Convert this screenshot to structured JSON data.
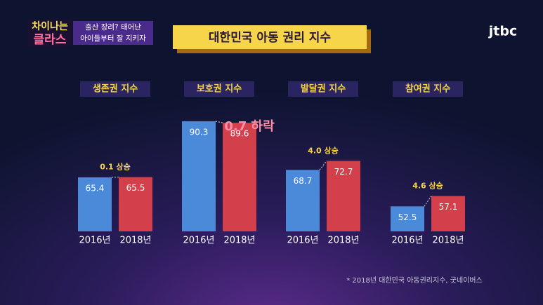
{
  "logo": [
    "차이나는",
    "클라스"
  ],
  "episode": [
    "출산 장려? 태어난",
    "아이들부터 잘 지키자"
  ],
  "title": "대한민국 아동 권리 지수",
  "channel": "jtbc",
  "source": "* 2018년 대한민국 아동권리지수, 굿네이버스",
  "chart_data": [
    {
      "type": "bar",
      "title": "생존권 지수",
      "categories": [
        "2016년",
        "2018년"
      ],
      "values": [
        65.4,
        65.5
      ],
      "colors": [
        "#4a8ad8",
        "#d3404c"
      ],
      "ylim": [
        41.4,
        91.2
      ],
      "annotation": "0.1 상승"
    },
    {
      "type": "bar",
      "title": "보호권 지수",
      "categories": [
        "2016년",
        "2018년"
      ],
      "values": [
        90.3,
        89.6
      ],
      "colors": [
        "#4a8ad8",
        "#d3404c"
      ],
      "ylim": [
        41.4,
        91.2
      ],
      "annotation": "0.7 하락"
    },
    {
      "type": "bar",
      "title": "발달권 지수",
      "categories": [
        "2016년",
        "2018년"
      ],
      "values": [
        68.7,
        72.7
      ],
      "colors": [
        "#4a8ad8",
        "#d3404c"
      ],
      "ylim": [
        41.4,
        91.2
      ],
      "annotation": "4.0 상승"
    },
    {
      "type": "bar",
      "title": "참여권 지수",
      "categories": [
        "2016년",
        "2018년"
      ],
      "values": [
        52.5,
        57.1
      ],
      "colors": [
        "#4a8ad8",
        "#d3404c"
      ],
      "ylim": [
        41.4,
        91.2
      ],
      "annotation": "4.6 상승"
    }
  ]
}
